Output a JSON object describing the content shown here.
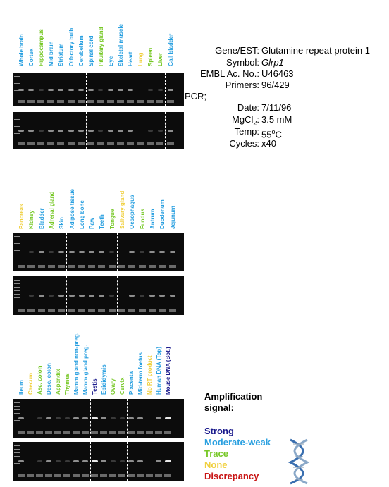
{
  "colors": {
    "strong": "#1a1a8c",
    "moderate": "#2aa0e0",
    "trace": "#78c828",
    "none": "#f0d040",
    "discrepancy": "#c81414",
    "gel": "#0c0c0c"
  },
  "info": {
    "gene_key": "Gene/EST:",
    "gene_val": "Glutamine repeat protein 1",
    "symbol_key": "Symbol:",
    "symbol_val": "Glrp1",
    "embl_key": "EMBL Ac. No.:",
    "embl_val": "U46463",
    "primers_key": "Primers:",
    "primers_val": "96/429",
    "pcr_key": "PCR;",
    "date_key": "Date:",
    "date_val": "7/11/96",
    "mgcl_key": "MgCl",
    "mgcl_sub": "2",
    "mgcl_sep": ":",
    "mgcl_val": "3.5 mM",
    "temp_key": "Temp:",
    "temp_val_num": "55",
    "temp_val_unit": "o",
    "temp_val_c": "C",
    "cycles_key": "Cycles:",
    "cycles_val": "x40"
  },
  "legend": {
    "title_line1": "Amplification",
    "title_line2": "signal:",
    "strong": "Strong",
    "moderate": "Moderate-weak",
    "trace": "Trace",
    "none": "None",
    "discrepancy": "Discrepancy",
    "dna_icon": "dna-helix-icon"
  },
  "panels": [
    {
      "lanes": [
        {
          "name": "Whole brain",
          "signal": "moderate"
        },
        {
          "name": "Cortex",
          "signal": "moderate"
        },
        {
          "name": "Hippocampus",
          "signal": "trace"
        },
        {
          "name": "Mid brain",
          "signal": "moderate"
        },
        {
          "name": "Striatum",
          "signal": "moderate"
        },
        {
          "name": "Olfactory bulb",
          "signal": "moderate"
        },
        {
          "name": "Cerebellum",
          "signal": "moderate"
        },
        {
          "name": "Spinal cord",
          "signal": "moderate"
        },
        {
          "name": "Pituitary gland",
          "signal": "trace"
        },
        {
          "name": "Eye",
          "signal": "moderate"
        },
        {
          "name": "Skeletal muscle",
          "signal": "moderate"
        },
        {
          "name": "Heart",
          "signal": "moderate"
        },
        {
          "name": "Lung",
          "signal": "none"
        },
        {
          "name": "Spleen",
          "signal": "trace"
        },
        {
          "name": "Liver",
          "signal": "trace"
        },
        {
          "name": "Gall bladder",
          "signal": "moderate"
        }
      ]
    },
    {
      "lanes": [
        {
          "name": "Pancreas",
          "signal": "none"
        },
        {
          "name": "Kidney",
          "signal": "trace"
        },
        {
          "name": "Bladder",
          "signal": "moderate"
        },
        {
          "name": "Adrenal gland",
          "signal": "trace"
        },
        {
          "name": "Skin",
          "signal": "moderate"
        },
        {
          "name": "Adipose tissue",
          "signal": "moderate"
        },
        {
          "name": "Long bone",
          "signal": "moderate"
        },
        {
          "name": "Paw",
          "signal": "moderate"
        },
        {
          "name": "Teeth",
          "signal": "moderate"
        },
        {
          "name": "Tongue",
          "signal": "trace"
        },
        {
          "name": "Salivary gland",
          "signal": "none"
        },
        {
          "name": "Oesophagus",
          "signal": "moderate"
        },
        {
          "name": "Fundus",
          "signal": "trace"
        },
        {
          "name": "Antrum",
          "signal": "moderate"
        },
        {
          "name": "Duodenum",
          "signal": "moderate"
        },
        {
          "name": "Jejunum",
          "signal": "moderate"
        }
      ]
    },
    {
      "lanes": [
        {
          "name": "Ileum",
          "signal": "moderate"
        },
        {
          "name": "Caecum",
          "signal": "none"
        },
        {
          "name": "Asc. colon",
          "signal": "trace"
        },
        {
          "name": "Desc. colon",
          "signal": "moderate"
        },
        {
          "name": "Appendix",
          "signal": "trace"
        },
        {
          "name": "Thymus",
          "signal": "trace"
        },
        {
          "name": "Mamm.gland non-preg.",
          "signal": "moderate"
        },
        {
          "name": "Mamm.gland preg.",
          "signal": "moderate"
        },
        {
          "name": "Testis",
          "signal": "strong"
        },
        {
          "name": "Epididymis",
          "signal": "moderate"
        },
        {
          "name": "Ovary",
          "signal": "trace"
        },
        {
          "name": "Cervix",
          "signal": "trace"
        },
        {
          "name": "Placenta",
          "signal": "moderate"
        },
        {
          "name": "Mid-term foetus",
          "signal": "moderate"
        },
        {
          "name": "No RT product",
          "signal": "none"
        },
        {
          "name": "Human DNA (Top)",
          "signal": "moderate"
        },
        {
          "name": "Mouse DNA (Bot.)",
          "signal": "strong"
        }
      ]
    }
  ]
}
